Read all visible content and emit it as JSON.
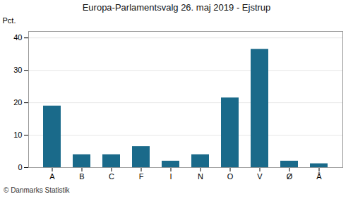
{
  "chart_data": {
    "type": "bar",
    "title": "Europa-Parlamentsvalg 26. maj 2019 - Ejstrup",
    "ylabel": "Pct.",
    "caption": "© Danmarks Statistik",
    "categories": [
      "A",
      "B",
      "C",
      "F",
      "I",
      "N",
      "O",
      "V",
      "Ø",
      "Å"
    ],
    "values": [
      19.0,
      4.0,
      4.0,
      6.5,
      2.0,
      4.0,
      21.5,
      36.5,
      2.0,
      1.2
    ],
    "color": "#1a6a8a",
    "ylim": [
      0,
      42
    ],
    "yticks": [
      0,
      10,
      20,
      30,
      40
    ],
    "grid": true
  }
}
